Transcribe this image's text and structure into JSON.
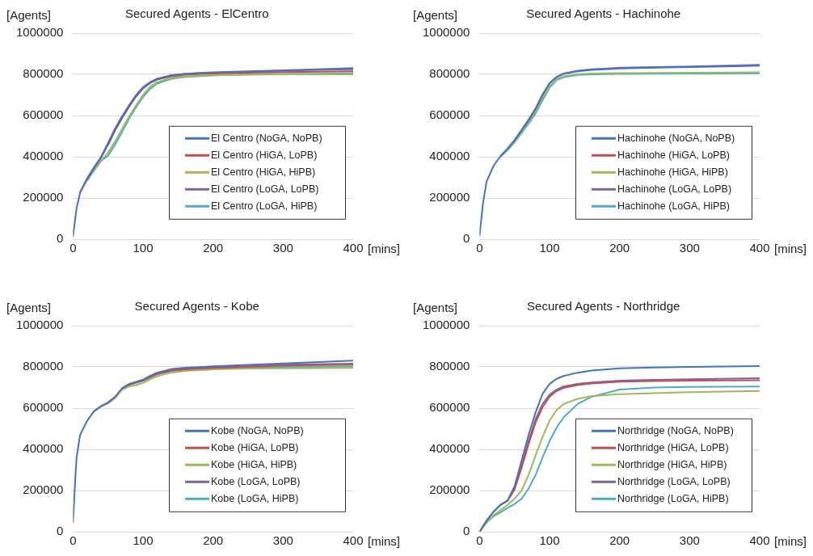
{
  "chart_data": [
    {
      "type": "line",
      "title": "Secured Agents - ElCentro",
      "ylabel": "[Agents]",
      "xlabel": "[mins]",
      "legend": "right",
      "grid": "y",
      "marker": "none",
      "line_style": "solid",
      "x": [
        0,
        5,
        10,
        20,
        30,
        40,
        50,
        60,
        70,
        80,
        90,
        100,
        110,
        120,
        140,
        160,
        200,
        250,
        300,
        350,
        400
      ],
      "xlim": [
        0,
        400
      ],
      "xticks": [
        0,
        100,
        200,
        300,
        400
      ],
      "ylim": [
        0,
        1000000
      ],
      "yticks": [
        0,
        200000,
        400000,
        600000,
        800000,
        1000000
      ],
      "series": [
        {
          "name": "El Centro (NoGA, NoPB)",
          "color": "#4472c4",
          "values": [
            15000,
            150000,
            225000,
            290000,
            345000,
            395000,
            460000,
            530000,
            590000,
            645000,
            695000,
            735000,
            760000,
            778000,
            795000,
            803000,
            810000,
            815000,
            820000,
            825000,
            830000
          ]
        },
        {
          "name": "El Centro (HiGA, LoPB)",
          "color": "#c0504d",
          "values": [
            null,
            null,
            null,
            null,
            null,
            null,
            458000,
            527000,
            587000,
            642000,
            692000,
            732000,
            757000,
            774000,
            790000,
            798000,
            804000,
            808000,
            811000,
            813000,
            815000
          ]
        },
        {
          "name": "El Centro (HiGA, HiPB)",
          "color": "#9bbb59",
          "values": [
            null,
            null,
            null,
            285000,
            335000,
            380000,
            420000,
            475000,
            535000,
            595000,
            650000,
            700000,
            740000,
            762000,
            782000,
            790000,
            795000,
            798000,
            800000,
            800000,
            800000
          ]
        },
        {
          "name": "El Centro (LoGA, LoPB)",
          "color": "#8064a2",
          "values": [
            null,
            null,
            228000,
            295000,
            350000,
            400000,
            468000,
            537000,
            597000,
            650000,
            700000,
            738000,
            762000,
            779000,
            795000,
            802000,
            808000,
            813000,
            818000,
            822000,
            825000
          ]
        },
        {
          "name": "El Centro (LoGA, HiPB)",
          "color": "#4bacc6",
          "values": [
            null,
            null,
            null,
            285000,
            333000,
            380000,
            405000,
            460000,
            520000,
            585000,
            640000,
            690000,
            730000,
            755000,
            778000,
            787000,
            795000,
            800000,
            802000,
            803000,
            805000
          ]
        }
      ]
    },
    {
      "type": "line",
      "title": "Secured Agents - Hachinohe",
      "ylabel": "[Agents]",
      "xlabel": "[mins]",
      "legend": "right",
      "grid": "y",
      "marker": "none",
      "line_style": "solid",
      "x": [
        0,
        5,
        10,
        20,
        30,
        40,
        50,
        60,
        70,
        80,
        90,
        100,
        110,
        120,
        140,
        160,
        200,
        250,
        300,
        350,
        400
      ],
      "xlim": [
        0,
        400
      ],
      "xticks": [
        0,
        100,
        200,
        300,
        400
      ],
      "ylim": [
        0,
        1000000
      ],
      "yticks": [
        0,
        200000,
        400000,
        600000,
        800000,
        1000000
      ],
      "series": [
        {
          "name": "Hachinohe (NoGA, NoPB)",
          "color": "#4472c4",
          "values": [
            18000,
            176000,
            280000,
            356000,
            404000,
            439000,
            480000,
            528000,
            577000,
            632000,
            700000,
            756000,
            786000,
            802000,
            815000,
            822000,
            828000,
            832000,
            835000,
            838000,
            842000
          ]
        },
        {
          "name": "Hachinohe (HiGA, LoPB)",
          "color": "#c0504d",
          "values": [
            null,
            null,
            null,
            null,
            null,
            null,
            null,
            null,
            null,
            null,
            null,
            null,
            null,
            null,
            null,
            null,
            null,
            null,
            null,
            null,
            null
          ]
        },
        {
          "name": "Hachinohe (HiGA, HiPB)",
          "color": "#9bbb59",
          "values": [
            null,
            null,
            null,
            null,
            402000,
            435000,
            474000,
            520000,
            567000,
            620000,
            685000,
            742000,
            776000,
            790000,
            801000,
            804000,
            806000,
            807000,
            808000,
            809000,
            810000
          ]
        },
        {
          "name": "Hachinohe (LoGA, LoPB)",
          "color": "#8064a2",
          "values": [
            null,
            null,
            null,
            null,
            null,
            440000,
            482000,
            530000,
            580000,
            635000,
            703000,
            758000,
            788000,
            804000,
            818000,
            825000,
            832000,
            835000,
            838000,
            842000,
            846000
          ]
        },
        {
          "name": "Hachinohe (LoGA, HiPB)",
          "color": "#4bacc6",
          "values": [
            null,
            null,
            null,
            null,
            400000,
            432000,
            470000,
            515000,
            560000,
            610000,
            675000,
            735000,
            772000,
            786000,
            797000,
            800000,
            802000,
            803000,
            804000,
            804000,
            805000
          ]
        }
      ]
    },
    {
      "type": "line",
      "title": "Secured Agents - Kobe",
      "ylabel": "[Agents]",
      "xlabel": "[mins]",
      "legend": "right",
      "grid": "y",
      "marker": "none",
      "line_style": "solid",
      "x": [
        0,
        3,
        5,
        10,
        20,
        30,
        40,
        50,
        60,
        70,
        80,
        90,
        100,
        110,
        120,
        140,
        160,
        200,
        250,
        300,
        400
      ],
      "xlim": [
        0,
        400
      ],
      "xticks": [
        0,
        100,
        200,
        300,
        400
      ],
      "ylim": [
        0,
        1000000
      ],
      "yticks": [
        0,
        200000,
        400000,
        600000,
        800000,
        1000000
      ],
      "series": [
        {
          "name": "Kobe (NoGA, NoPB)",
          "color": "#4472c4",
          "values": [
            48000,
            248000,
            359000,
            469000,
            538000,
            586000,
            610000,
            628000,
            655000,
            697000,
            717000,
            728000,
            738000,
            756000,
            772000,
            789000,
            796000,
            803000,
            810000,
            817000,
            830000
          ]
        },
        {
          "name": "Kobe (HiGA, LoPB)",
          "color": "#c0504d",
          "values": [
            null,
            null,
            null,
            null,
            null,
            null,
            null,
            null,
            null,
            695000,
            714000,
            724000,
            734000,
            750000,
            765000,
            781000,
            788000,
            795000,
            800000,
            807000,
            811000
          ]
        },
        {
          "name": "Kobe (HiGA, HiPB)",
          "color": "#9bbb59",
          "values": [
            null,
            null,
            null,
            null,
            null,
            584000,
            607000,
            622000,
            648000,
            690000,
            705000,
            712000,
            722000,
            740000,
            755000,
            772000,
            780000,
            788000,
            792000,
            793000,
            795000
          ]
        },
        {
          "name": "Kobe (LoGA, LoPB)",
          "color": "#8064a2",
          "values": [
            null,
            null,
            null,
            null,
            null,
            null,
            null,
            null,
            null,
            696000,
            716000,
            726000,
            736000,
            753000,
            768000,
            784000,
            791000,
            798000,
            803000,
            811000,
            816000
          ]
        },
        {
          "name": "Kobe (LoGA, HiPB)",
          "color": "#4bacc6",
          "values": [
            null,
            null,
            null,
            null,
            null,
            null,
            null,
            626000,
            652000,
            694000,
            713000,
            722000,
            732000,
            750000,
            765000,
            780000,
            787000,
            794000,
            798000,
            800000,
            802000
          ]
        }
      ]
    },
    {
      "type": "line",
      "title": "Secured Agents - Northridge",
      "ylabel": "[Agents]",
      "xlabel": "[mins]",
      "legend": "right",
      "grid": "y",
      "marker": "none",
      "line_style": "solid",
      "x": [
        0,
        10,
        20,
        30,
        40,
        50,
        60,
        70,
        80,
        90,
        100,
        110,
        120,
        140,
        160,
        200,
        250,
        300,
        400
      ],
      "xlim": [
        0,
        400
      ],
      "xticks": [
        0,
        100,
        200,
        300,
        400
      ],
      "ylim": [
        0,
        1000000
      ],
      "yticks": [
        0,
        200000,
        400000,
        600000,
        800000,
        1000000
      ],
      "series": [
        {
          "name": "Northridge (NoGA, NoPB)",
          "color": "#4472c4",
          "values": [
            0,
            52000,
            97000,
            131000,
            152000,
            221000,
            345000,
            469000,
            579000,
            669000,
            717000,
            742000,
            756000,
            772000,
            782000,
            793000,
            797000,
            800000,
            804000
          ]
        },
        {
          "name": "Northridge (HiGA, LoPB)",
          "color": "#c0504d",
          "values": [
            null,
            null,
            null,
            131000,
            150000,
            205000,
            310000,
            425000,
            530000,
            605000,
            655000,
            683000,
            698000,
            712000,
            720000,
            728000,
            731000,
            733000,
            735000
          ]
        },
        {
          "name": "Northridge (HiGA, HiPB)",
          "color": "#9bbb59",
          "values": [
            0,
            45000,
            80000,
            105000,
            130000,
            160000,
            200000,
            275000,
            370000,
            460000,
            540000,
            590000,
            620000,
            645000,
            658000,
            668000,
            673000,
            677000,
            683000
          ]
        },
        {
          "name": "Northridge (LoGA, LoPB)",
          "color": "#8064a2",
          "values": [
            0,
            55000,
            97000,
            131000,
            150000,
            210000,
            320000,
            440000,
            545000,
            620000,
            665000,
            690000,
            705000,
            718000,
            725000,
            733000,
            737000,
            740000,
            745000
          ]
        },
        {
          "name": "Northridge (LoGA, HiPB)",
          "color": "#4bacc6",
          "values": [
            0,
            45000,
            75000,
            95000,
            115000,
            135000,
            160000,
            210000,
            275000,
            360000,
            440000,
            505000,
            555000,
            620000,
            655000,
            690000,
            700000,
            703000,
            705000
          ]
        }
      ]
    }
  ]
}
